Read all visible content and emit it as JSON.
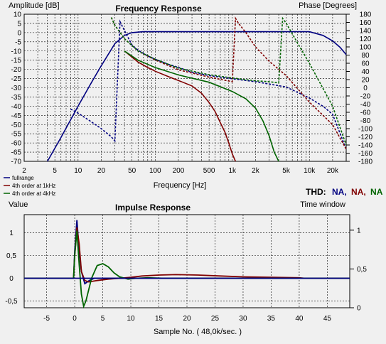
{
  "chart_data": [
    {
      "type": "line",
      "title": "Frequency Response",
      "ylabel_left": "Amplitude [dB]",
      "ylabel_right": "Phase [Degrees]",
      "xlabel": "Frequency [Hz]",
      "xscale": "log",
      "xlim": [
        2,
        30000
      ],
      "ylim_left": [
        -70,
        10
      ],
      "ylim_right": [
        -180,
        180
      ],
      "x_ticks": [
        {
          "v": 2,
          "label": "2"
        },
        {
          "v": 5,
          "label": "5"
        },
        {
          "v": 10,
          "label": "10"
        },
        {
          "v": 20,
          "label": "20"
        },
        {
          "v": 50,
          "label": "50"
        },
        {
          "v": 100,
          "label": "100"
        },
        {
          "v": 200,
          "label": "200"
        },
        {
          "v": 500,
          "label": "500"
        },
        {
          "v": 1000,
          "label": "1k"
        },
        {
          "v": 2000,
          "label": "2k"
        },
        {
          "v": 5000,
          "label": "5k"
        },
        {
          "v": 10000,
          "label": "10k"
        },
        {
          "v": 20000,
          "label": "20k"
        }
      ],
      "y_ticks_left": [
        10,
        5,
        0,
        -5,
        -10,
        -15,
        -20,
        -25,
        -30,
        -35,
        -40,
        -45,
        -50,
        -55,
        -60,
        -65,
        -70
      ],
      "y_ticks_left_labels": [
        "10",
        "5",
        "0",
        "-5",
        "-10",
        "-15",
        "-20",
        "-25",
        "-30",
        "-35",
        "-40",
        "-45",
        "-50",
        "-55",
        "-60",
        "-65",
        "-70"
      ],
      "y_ticks_right": [
        180,
        160,
        140,
        120,
        100,
        80,
        60,
        40,
        20,
        0,
        -20,
        -40,
        -60,
        -80,
        -100,
        -120,
        -140,
        -160,
        -180
      ],
      "y_ticks_right_labels": [
        "180",
        "160",
        "140",
        "120",
        "100",
        "80",
        "60",
        "40",
        "20",
        "0",
        "-20",
        "-40",
        "-60",
        "-80",
        "-100",
        "-120",
        "-140",
        "-160",
        "-180"
      ],
      "grid": true,
      "legend_position": "bottom-left",
      "series": [
        {
          "name": "fullrange",
          "kind": "amplitude",
          "color": "#000080",
          "x": [
            4,
            6,
            10,
            15,
            20,
            30,
            40,
            50,
            70,
            100,
            1000,
            5000,
            10000,
            15000,
            20000,
            25000,
            30000
          ],
          "y": [
            -70,
            -57,
            -40,
            -27,
            -18,
            -6,
            -1.5,
            0,
            0.5,
            0.5,
            0.5,
            0.5,
            0.5,
            -1.5,
            -4.5,
            -8,
            -12
          ]
        },
        {
          "name": "fullrange",
          "kind": "phase",
          "color": "#000080",
          "x": [
            8,
            10,
            14,
            20,
            27,
            30,
            35,
            40,
            50,
            60,
            80,
            100,
            150,
            200,
            300,
            500,
            700,
            1000,
            2000,
            5000,
            10000,
            15000,
            20000,
            30000
          ],
          "y": [
            -52,
            -62,
            -80,
            -100,
            -120,
            -130,
            162,
            140,
            105,
            92,
            78,
            70,
            57,
            50,
            38,
            30,
            26,
            22,
            15,
            2,
            -25,
            -45,
            -65,
            -150
          ]
        },
        {
          "name": "4th order at 1kHz",
          "kind": "amplitude",
          "color": "#800000",
          "x": [
            40,
            60,
            80,
            100,
            150,
            200,
            300,
            400,
            500,
            600,
            700,
            800,
            900,
            1000,
            1100
          ],
          "y": [
            -10,
            -16,
            -19,
            -21,
            -24,
            -26,
            -29,
            -33,
            -38,
            -43,
            -49,
            -54,
            -60,
            -66,
            -70
          ]
        },
        {
          "name": "4th order at 1kHz",
          "kind": "phase",
          "color": "#800000",
          "x": [
            27,
            30,
            40,
            60,
            100,
            200,
            500,
            1000,
            1100,
            1200,
            1500,
            2000,
            3000,
            5000,
            10000,
            20000,
            30000
          ],
          "y": [
            172,
            153,
            120,
            90,
            68,
            44,
            26,
            15,
            170,
            158,
            135,
            100,
            65,
            30,
            -35,
            -90,
            -150
          ]
        },
        {
          "name": "4th order at 4kHz",
          "kind": "amplitude",
          "color": "#006400",
          "x": [
            40,
            60,
            100,
            200,
            500,
            1000,
            1500,
            2000,
            2500,
            3000,
            3500,
            4000
          ],
          "y": [
            -10,
            -15,
            -19,
            -23,
            -27,
            -32,
            -36,
            -41,
            -48,
            -56,
            -65,
            -70
          ]
        },
        {
          "name": "4th order at 4kHz",
          "kind": "phase",
          "color": "#006400",
          "x": [
            27,
            30,
            40,
            60,
            100,
            200,
            500,
            1000,
            2000,
            3000,
            4000,
            4500,
            5000,
            7000,
            10000,
            20000,
            30000
          ],
          "y": [
            172,
            153,
            120,
            90,
            70,
            48,
            32,
            24,
            17,
            15,
            12,
            170,
            158,
            110,
            60,
            -45,
            -140
          ]
        }
      ],
      "legend": [
        "fullrange",
        "4th order at 1kHz",
        "4th order at 4kHz"
      ],
      "thd": {
        "label": "THD:",
        "values": [
          "NA,",
          "NA,",
          "NA"
        ],
        "colors": [
          "#000080",
          "#800000",
          "#006400"
        ]
      }
    },
    {
      "type": "line",
      "title": "Impulse Response",
      "ylabel_left": "Value",
      "ylabel_right": "Time window",
      "xlabel": "Sample No. ( 48,0k/sec. )",
      "xlim": [
        -9,
        49
      ],
      "ylim_left": [
        -0.65,
        1.4
      ],
      "ylim_right": [
        0,
        1.2
      ],
      "x_ticks": [
        -5,
        0,
        5,
        10,
        15,
        20,
        25,
        30,
        35,
        40,
        45
      ],
      "x_tick_labels": [
        "-5",
        "0",
        "5",
        "10",
        "15",
        "20",
        "25",
        "30",
        "35",
        "40",
        "45"
      ],
      "y_ticks_left": [
        1,
        0.5,
        0,
        -0.5
      ],
      "y_ticks_left_labels": [
        "1",
        "0,5",
        "0",
        "-0,5"
      ],
      "y_ticks_right": [
        1,
        0.5,
        0
      ],
      "y_ticks_right_labels": [
        "1",
        "0,5",
        "0"
      ],
      "grid": true,
      "series": [
        {
          "name": "fullrange",
          "color": "#000080",
          "x": [
            -9,
            -0.2,
            0,
            0.4,
            0.8,
            1.2,
            1.8,
            2.6,
            3.5,
            5,
            49
          ],
          "y": [
            0,
            0,
            0.6,
            1.28,
            0.6,
            0.15,
            -0.12,
            -0.05,
            0,
            0,
            0
          ]
        },
        {
          "name": "4th order at 1kHz",
          "color": "#800000",
          "x": [
            -9,
            -0.2,
            0,
            0.4,
            0.8,
            1.2,
            1.8,
            2.5,
            4,
            6,
            8,
            10,
            12,
            15,
            18,
            22,
            26,
            30,
            35,
            40,
            41,
            49
          ],
          "y": [
            0,
            0,
            0.5,
            1.12,
            0.75,
            0.15,
            -0.05,
            -0.08,
            -0.05,
            -0.02,
            0,
            0.02,
            0.05,
            0.07,
            0.08,
            0.07,
            0.05,
            0.03,
            0.02,
            0.01,
            0,
            0
          ]
        },
        {
          "name": "4th order at 4kHz",
          "color": "#006400",
          "x": [
            -9,
            -0.2,
            0,
            0.4,
            0.8,
            1.2,
            1.6,
            2,
            3,
            4,
            5,
            6,
            7,
            8,
            9.5,
            11,
            13,
            16,
            49
          ],
          "y": [
            0,
            0,
            0.5,
            1.05,
            0.3,
            -0.35,
            -0.62,
            -0.5,
            0,
            0.28,
            0.32,
            0.25,
            0.12,
            0.03,
            -0.02,
            0,
            0.01,
            0,
            0
          ]
        },
        {
          "name": "time window",
          "color": "#000080",
          "x": [
            -9,
            49
          ],
          "y": [
            0,
            0
          ]
        }
      ]
    }
  ]
}
